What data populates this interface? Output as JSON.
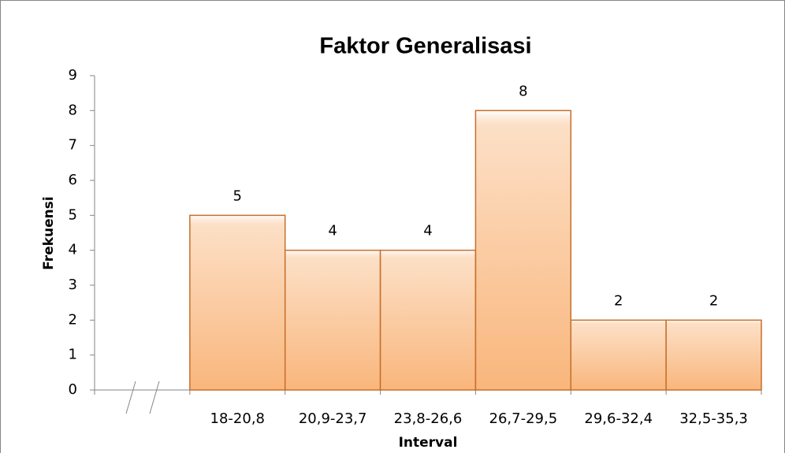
{
  "chart_data": {
    "type": "bar",
    "title": "Faktor Generalisasi",
    "x_label": "Interval",
    "y_label": "Frekuensi",
    "categories": [
      null,
      "18-20,8",
      "20,9-23,7",
      "23,8-26,6",
      "26,7-29,5",
      "29,6-32,4",
      "32,5-35,3"
    ],
    "values": [
      null,
      5,
      4,
      4,
      8,
      2,
      2
    ],
    "color": "#f9b67c",
    "ylim": [
      0,
      9
    ],
    "yticks": [
      0,
      1,
      2,
      3,
      4,
      5,
      6,
      7,
      8,
      9
    ],
    "grid": false
  }
}
